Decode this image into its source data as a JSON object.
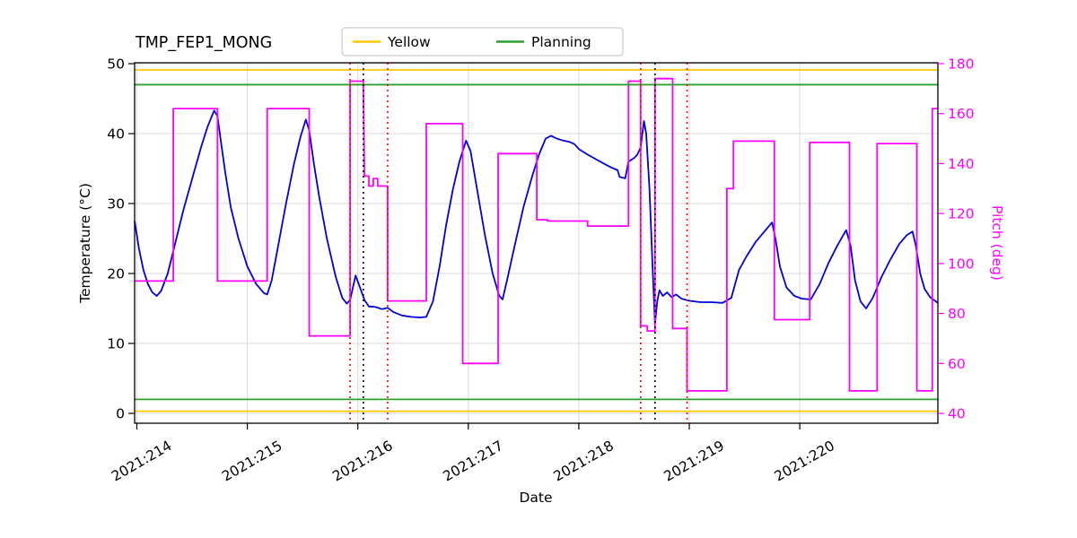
{
  "title": "TMP_FEP1_MONG",
  "legend": {
    "items": [
      {
        "label": "Yellow",
        "color": "#ffc800"
      },
      {
        "label": "Planning",
        "color": "#2ca02c"
      }
    ]
  },
  "chart_data": {
    "type": "line",
    "title": "TMP_FEP1_MONG",
    "xlabel": "Date",
    "ylabel_left": "Temperature (°C)",
    "ylabel_right": "Pitch (deg)",
    "xlim": [
      213.98,
      221.25
    ],
    "ylim_left": [
      -1.41,
      50.13
    ],
    "ylim_right": [
      36.05,
      180.36
    ],
    "grid": true,
    "grid_color": "#d9d9d9",
    "right_axis_color": "#ff00ff",
    "x_ticks": [
      {
        "value": 214,
        "label": "2021:214"
      },
      {
        "value": 215,
        "label": "2021:215"
      },
      {
        "value": 216,
        "label": "2021:216"
      },
      {
        "value": 217,
        "label": "2021:217"
      },
      {
        "value": 218,
        "label": "2021:218"
      },
      {
        "value": 219,
        "label": "2021:219"
      },
      {
        "value": 220,
        "label": "2021:220"
      }
    ],
    "y_ticks_left": [
      0,
      10,
      20,
      30,
      40,
      50
    ],
    "y_ticks_right": [
      40,
      60,
      80,
      100,
      120,
      140,
      160,
      180
    ],
    "series": [
      {
        "name": "temperature",
        "axis": "left",
        "color": "#0000dd",
        "points": [
          [
            213.98,
            27.5
          ],
          [
            214.02,
            23.5
          ],
          [
            214.06,
            20.5
          ],
          [
            214.1,
            18.5
          ],
          [
            214.14,
            17.3
          ],
          [
            214.18,
            16.8
          ],
          [
            214.22,
            17.5
          ],
          [
            214.28,
            20.0
          ],
          [
            214.35,
            24.5
          ],
          [
            214.42,
            29.0
          ],
          [
            214.5,
            33.5
          ],
          [
            214.58,
            38.0
          ],
          [
            214.64,
            41.0
          ],
          [
            214.7,
            43.3
          ],
          [
            214.73,
            42.5
          ],
          [
            214.76,
            39.0
          ],
          [
            214.8,
            34.5
          ],
          [
            214.85,
            29.5
          ],
          [
            214.92,
            25.0
          ],
          [
            215.0,
            21.0
          ],
          [
            215.08,
            18.5
          ],
          [
            215.15,
            17.2
          ],
          [
            215.18,
            17.0
          ],
          [
            215.22,
            19.0
          ],
          [
            215.28,
            24.0
          ],
          [
            215.35,
            30.0
          ],
          [
            215.42,
            35.5
          ],
          [
            215.48,
            39.5
          ],
          [
            215.53,
            42.0
          ],
          [
            215.56,
            40.5
          ],
          [
            215.6,
            36.0
          ],
          [
            215.65,
            31.0
          ],
          [
            215.72,
            25.0
          ],
          [
            215.8,
            19.5
          ],
          [
            215.86,
            16.5
          ],
          [
            215.9,
            15.7
          ],
          [
            215.93,
            16.2
          ],
          [
            215.98,
            19.7
          ],
          [
            216.02,
            18.0
          ],
          [
            216.06,
            16.2
          ],
          [
            216.1,
            15.3
          ],
          [
            216.16,
            15.2
          ],
          [
            216.22,
            14.9
          ],
          [
            216.27,
            15.1
          ],
          [
            216.32,
            14.5
          ],
          [
            216.4,
            14.0
          ],
          [
            216.48,
            13.8
          ],
          [
            216.56,
            13.7
          ],
          [
            216.62,
            13.8
          ],
          [
            216.68,
            16.0
          ],
          [
            216.74,
            21.0
          ],
          [
            216.8,
            27.0
          ],
          [
            216.86,
            32.0
          ],
          [
            216.92,
            36.0
          ],
          [
            216.98,
            39.0
          ],
          [
            217.02,
            37.5
          ],
          [
            217.08,
            32.0
          ],
          [
            217.15,
            25.5
          ],
          [
            217.22,
            20.0
          ],
          [
            217.28,
            16.8
          ],
          [
            217.31,
            16.3
          ],
          [
            217.35,
            19.0
          ],
          [
            217.42,
            24.0
          ],
          [
            217.5,
            29.5
          ],
          [
            217.58,
            34.0
          ],
          [
            217.64,
            37.0
          ],
          [
            217.7,
            39.3
          ],
          [
            217.75,
            39.7
          ],
          [
            217.8,
            39.3
          ],
          [
            217.86,
            39.0
          ],
          [
            217.92,
            38.8
          ],
          [
            217.96,
            38.5
          ],
          [
            218.0,
            37.8
          ],
          [
            218.08,
            37.0
          ],
          [
            218.16,
            36.3
          ],
          [
            218.24,
            35.6
          ],
          [
            218.3,
            35.1
          ],
          [
            218.35,
            34.8
          ],
          [
            218.37,
            33.8
          ],
          [
            218.42,
            33.6
          ],
          [
            218.45,
            36.0
          ],
          [
            218.5,
            36.5
          ],
          [
            218.53,
            37.0
          ],
          [
            218.56,
            38.0
          ],
          [
            218.59,
            41.8
          ],
          [
            218.61,
            40.0
          ],
          [
            218.64,
            32.0
          ],
          [
            218.67,
            20.0
          ],
          [
            218.69,
            12.8
          ],
          [
            218.71,
            16.0
          ],
          [
            218.73,
            17.6
          ],
          [
            218.76,
            16.8
          ],
          [
            218.8,
            17.3
          ],
          [
            218.84,
            16.6
          ],
          [
            218.88,
            17.0
          ],
          [
            218.93,
            16.4
          ],
          [
            219.0,
            16.1
          ],
          [
            219.1,
            15.9
          ],
          [
            219.2,
            15.9
          ],
          [
            219.3,
            15.8
          ],
          [
            219.38,
            16.5
          ],
          [
            219.45,
            20.5
          ],
          [
            219.52,
            22.5
          ],
          [
            219.6,
            24.5
          ],
          [
            219.68,
            26.0
          ],
          [
            219.75,
            27.3
          ],
          [
            219.78,
            25.0
          ],
          [
            219.82,
            21.0
          ],
          [
            219.88,
            18.0
          ],
          [
            219.95,
            16.8
          ],
          [
            220.02,
            16.4
          ],
          [
            220.1,
            16.3
          ],
          [
            220.18,
            18.5
          ],
          [
            220.26,
            21.5
          ],
          [
            220.34,
            24.0
          ],
          [
            220.42,
            26.2
          ],
          [
            220.46,
            24.0
          ],
          [
            220.5,
            19.0
          ],
          [
            220.55,
            16.0
          ],
          [
            220.6,
            15.0
          ],
          [
            220.66,
            16.5
          ],
          [
            220.74,
            19.5
          ],
          [
            220.82,
            22.0
          ],
          [
            220.9,
            24.2
          ],
          [
            220.97,
            25.5
          ],
          [
            221.02,
            26.0
          ],
          [
            221.05,
            24.0
          ],
          [
            221.09,
            20.0
          ],
          [
            221.13,
            17.8
          ],
          [
            221.18,
            16.6
          ],
          [
            221.25,
            15.8
          ]
        ]
      },
      {
        "name": "pitch",
        "axis": "right",
        "color": "#ff00ff",
        "points": [
          [
            213.98,
            93
          ],
          [
            214.33,
            93
          ],
          [
            214.33,
            162
          ],
          [
            214.73,
            162
          ],
          [
            214.73,
            93
          ],
          [
            215.18,
            93
          ],
          [
            215.18,
            162
          ],
          [
            215.56,
            162
          ],
          [
            215.56,
            71
          ],
          [
            215.93,
            71
          ],
          [
            215.93,
            173
          ],
          [
            216.05,
            173
          ],
          [
            216.06,
            135
          ],
          [
            216.1,
            135
          ],
          [
            216.1,
            131
          ],
          [
            216.14,
            131
          ],
          [
            216.14,
            134
          ],
          [
            216.18,
            134
          ],
          [
            216.18,
            131
          ],
          [
            216.27,
            131
          ],
          [
            216.27,
            85
          ],
          [
            216.62,
            85
          ],
          [
            216.62,
            156
          ],
          [
            216.95,
            156
          ],
          [
            216.95,
            60
          ],
          [
            217.27,
            60
          ],
          [
            217.27,
            144
          ],
          [
            217.62,
            144
          ],
          [
            217.62,
            117.5
          ],
          [
            217.72,
            117.5
          ],
          [
            217.72,
            117
          ],
          [
            218.08,
            117
          ],
          [
            218.08,
            115
          ],
          [
            218.45,
            115
          ],
          [
            218.45,
            173
          ],
          [
            218.56,
            173
          ],
          [
            218.56,
            75
          ],
          [
            218.62,
            75
          ],
          [
            218.62,
            73
          ],
          [
            218.69,
            73
          ],
          [
            218.69,
            174
          ],
          [
            218.85,
            174
          ],
          [
            218.85,
            74
          ],
          [
            218.98,
            74
          ],
          [
            218.98,
            49
          ],
          [
            219.34,
            49
          ],
          [
            219.34,
            130
          ],
          [
            219.4,
            130
          ],
          [
            219.4,
            149
          ],
          [
            219.77,
            149
          ],
          [
            219.77,
            77.5
          ],
          [
            220.09,
            77.5
          ],
          [
            220.09,
            148.5
          ],
          [
            220.45,
            148.5
          ],
          [
            220.45,
            49
          ],
          [
            220.7,
            49
          ],
          [
            220.7,
            148
          ],
          [
            221.06,
            148
          ],
          [
            221.06,
            49
          ],
          [
            221.2,
            49
          ],
          [
            221.2,
            162
          ],
          [
            221.25,
            162
          ]
        ]
      }
    ],
    "hlines": [
      {
        "name": "yellow-upper-limit-line",
        "y": 49.1,
        "color": "#ffc800"
      },
      {
        "name": "yellow-lower-limit-line",
        "y": 0.3,
        "color": "#ffc800"
      },
      {
        "name": "planning-upper-limit-line",
        "y": 47.0,
        "color": "#2ca02c"
      },
      {
        "name": "planning-lower-limit-line",
        "y": 2.0,
        "color": "#2ca02c"
      }
    ],
    "vlines": [
      {
        "name": "event-marker-red-1",
        "x": 215.93,
        "color": "#ff0000"
      },
      {
        "name": "event-marker-black-1",
        "x": 216.05,
        "color": "#000000"
      },
      {
        "name": "event-marker-red-2",
        "x": 216.27,
        "color": "#ff0000"
      },
      {
        "name": "event-marker-red-3",
        "x": 218.56,
        "color": "#ff0000"
      },
      {
        "name": "event-marker-black-2",
        "x": 218.69,
        "color": "#000000"
      },
      {
        "name": "event-marker-red-4",
        "x": 218.98,
        "color": "#ff0000"
      }
    ]
  }
}
